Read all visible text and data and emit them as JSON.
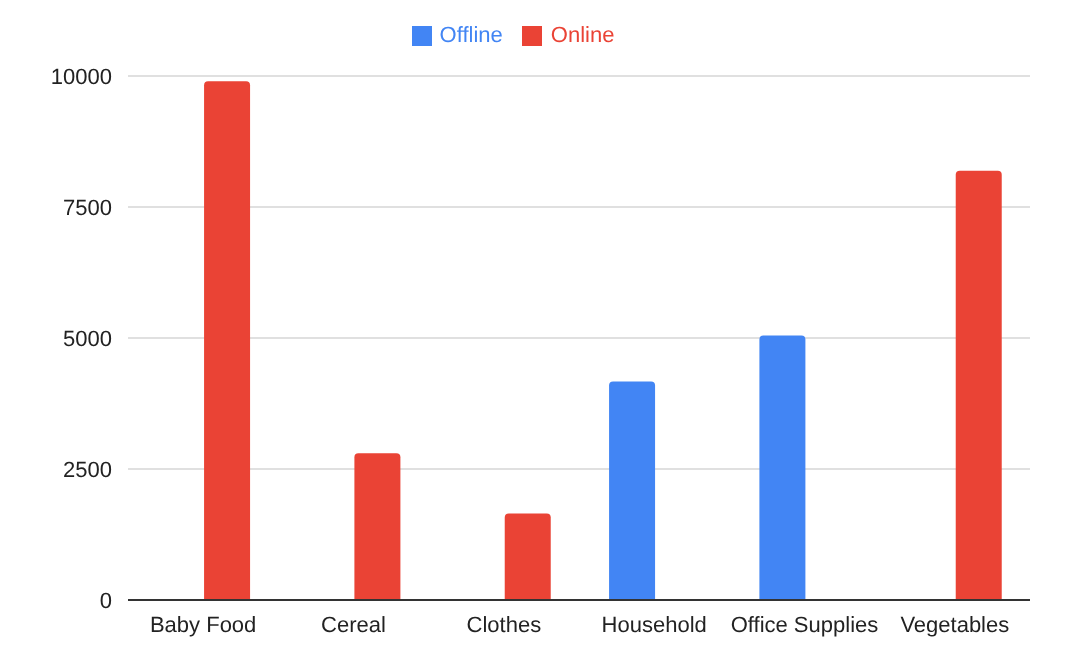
{
  "chart_data": {
    "type": "bar",
    "categories": [
      "Baby Food",
      "Cereal",
      "Clothes",
      "Household",
      "Office Supplies",
      "Vegetables"
    ],
    "series": [
      {
        "name": "Offline",
        "color": "#4285f4",
        "values": [
          null,
          null,
          null,
          4170,
          5050,
          null
        ]
      },
      {
        "name": "Online",
        "color": "#ea4335",
        "values": [
          9900,
          2800,
          1650,
          null,
          null,
          8190
        ]
      }
    ],
    "ylim": [
      0,
      10000
    ],
    "yticks": [
      0,
      2500,
      5000,
      7500,
      10000
    ],
    "grid": "y",
    "legend": "top"
  }
}
